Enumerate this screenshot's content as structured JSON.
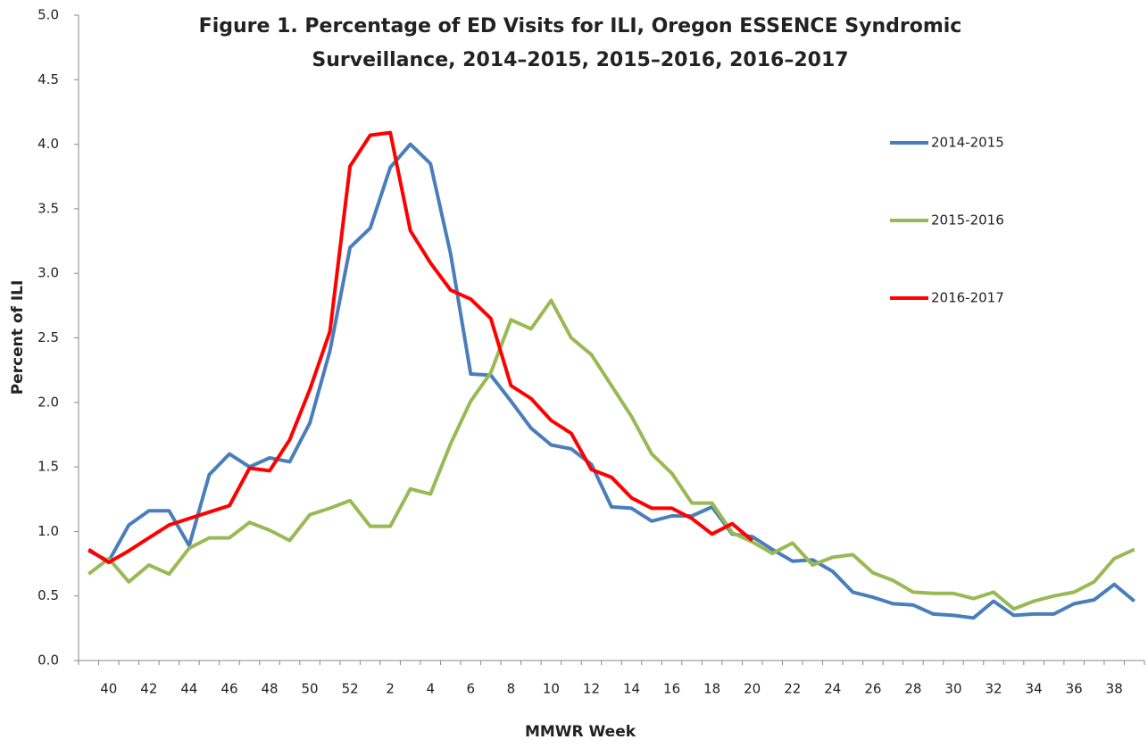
{
  "chart_data": {
    "type": "line",
    "title": [
      "Figure 1. Percentage of ED Visits for ILI, Oregon ESSENCE Syndromic",
      "Surveillance, 2014–2015, 2015–2016, 2016–2017"
    ],
    "x_label": "MMWR Week",
    "y_label": "Percent of ILI",
    "categories": [
      null,
      "40",
      null,
      "42",
      null,
      "44",
      null,
      "46",
      null,
      "48",
      null,
      "50",
      null,
      "52",
      null,
      "2",
      null,
      "4",
      null,
      "6",
      null,
      "8",
      null,
      "10",
      null,
      "12",
      null,
      "14",
      null,
      "16",
      null,
      "18",
      null,
      "20",
      null,
      "22",
      null,
      "24",
      null,
      "26",
      null,
      "28",
      null,
      "30",
      null,
      "32",
      null,
      "34",
      null,
      "36",
      null,
      "38",
      null
    ],
    "series": [
      {
        "name": "2014-2015",
        "color": "#4a7ebb",
        "values": [
          0.85,
          0.77,
          1.05,
          1.16,
          1.16,
          0.89,
          1.44,
          1.6,
          1.5,
          1.57,
          1.54,
          1.84,
          2.4,
          3.2,
          3.35,
          3.82,
          4.0,
          3.85,
          3.15,
          2.22,
          2.21,
          2.01,
          1.8,
          1.67,
          1.64,
          1.52,
          1.19,
          1.18,
          1.08,
          1.12,
          1.12,
          1.19,
          0.98,
          0.96,
          0.86,
          0.77,
          0.78,
          0.69,
          0.53,
          0.49,
          0.44,
          0.43,
          0.36,
          0.35,
          0.33,
          0.46,
          0.35,
          0.36,
          0.36,
          0.44,
          0.47,
          0.59,
          0.46
        ]
      },
      {
        "name": "2015-2016",
        "color": "#98b954",
        "values": [
          0.67,
          0.79,
          0.61,
          0.74,
          0.67,
          0.87,
          0.95,
          0.95,
          1.07,
          1.01,
          0.93,
          1.13,
          1.18,
          1.24,
          1.04,
          1.04,
          1.33,
          1.29,
          1.68,
          2.01,
          2.23,
          2.64,
          2.57,
          2.79,
          2.5,
          2.37,
          2.13,
          1.89,
          1.6,
          1.45,
          1.22,
          1.22,
          0.99,
          0.92,
          0.83,
          0.91,
          0.74,
          0.8,
          0.82,
          0.68,
          0.62,
          0.53,
          0.52,
          0.52,
          0.48,
          0.53,
          0.4,
          0.46,
          0.5,
          0.53,
          0.61,
          0.79,
          0.86
        ]
      },
      {
        "name": "2016-2017",
        "color": "#ff0000",
        "values": [
          0.86,
          0.76,
          0.85,
          0.95,
          1.05,
          1.1,
          1.15,
          1.2,
          1.49,
          1.47,
          1.71,
          2.1,
          2.55,
          3.83,
          4.07,
          4.09,
          3.33,
          3.08,
          2.87,
          2.8,
          2.65,
          2.13,
          2.03,
          1.86,
          1.76,
          1.48,
          1.42,
          1.26,
          1.18,
          1.18,
          1.1,
          0.98,
          1.06,
          0.93,
          null,
          null,
          null,
          null,
          null,
          null,
          null,
          null,
          null,
          null,
          null,
          null,
          null,
          null,
          null,
          null,
          null,
          null,
          null
        ]
      }
    ],
    "ylim": [
      0,
      5
    ],
    "yticks": [
      {
        "value": 0,
        "label": "0.0"
      },
      0.5,
      {
        "value": 1,
        "label": "1.0"
      },
      1.5,
      {
        "value": 2,
        "label": "2.0"
      },
      2.5,
      {
        "value": 3,
        "label": "3.0"
      },
      3.5,
      {
        "value": 4,
        "label": "4.0"
      },
      4.5,
      {
        "value": 5,
        "label": "5.0"
      }
    ],
    "grid": false,
    "legend": "right"
  }
}
